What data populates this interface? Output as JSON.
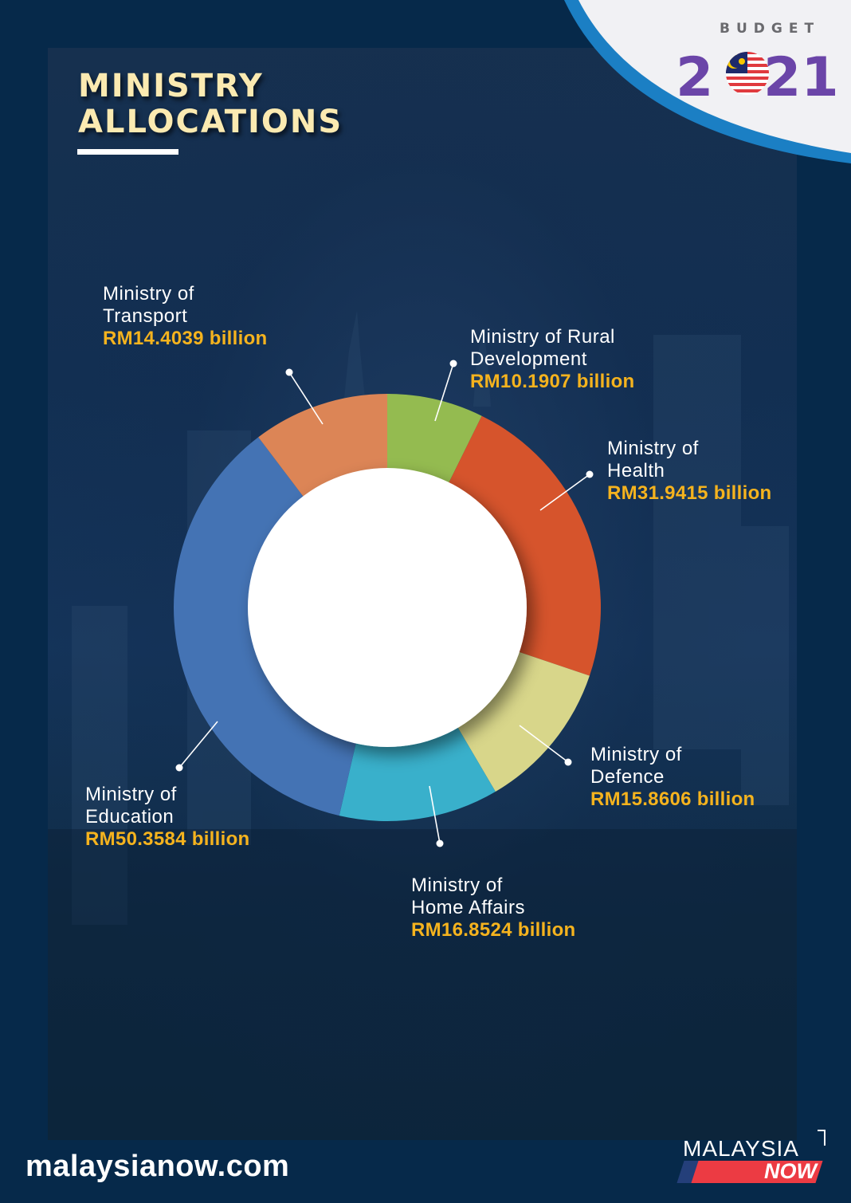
{
  "header": {
    "title_line1": "MINISTRY",
    "title_line2": "ALLOCATIONS",
    "badge_label": "BUDGET",
    "badge_year": "2021"
  },
  "colors": {
    "background": "#06294a",
    "title": "#fbeab1",
    "value_text": "#f5b31e",
    "badge_arc": "#1b7fc4",
    "badge_year": "#6b45a8",
    "brand_red": "#ec3b43"
  },
  "chart_data": {
    "type": "pie",
    "variant": "donut",
    "title": "MINISTRY ALLOCATIONS",
    "unit": "RM billion",
    "categories": [
      "Ministry of Rural Development",
      "Ministry of Health",
      "Ministry of Defence",
      "Ministry of Home Affairs",
      "Ministry of Education",
      "Ministry of Transport"
    ],
    "values": [
      10.1907,
      31.9415,
      15.8606,
      16.8524,
      50.3584,
      14.4039
    ],
    "colors": [
      "#94bb50",
      "#d6542c",
      "#d8d68a",
      "#39b0cb",
      "#4473b4",
      "#dc8556"
    ],
    "start_angle_deg": 0,
    "direction": "clockwise",
    "legend": "callout labels"
  },
  "labels": [
    {
      "name": "Ministry of\nTransport",
      "value": "RM14.4039 billion"
    },
    {
      "name": "Ministry of Rural\nDevelopment",
      "value": "RM10.1907 billion"
    },
    {
      "name": "Ministry of\nHealth",
      "value": "RM31.9415 billion"
    },
    {
      "name": "Ministry of\nDefence",
      "value": "RM15.8606 billion"
    },
    {
      "name": "Ministry of\nHome Affairs",
      "value": "RM16.8524 billion"
    },
    {
      "name": "Ministry of\nEducation",
      "value": "RM50.3584 billion"
    }
  ],
  "footer": {
    "url": "malaysianow.com",
    "brand_top": "MALAYSIA",
    "brand_bottom": "NOW"
  }
}
